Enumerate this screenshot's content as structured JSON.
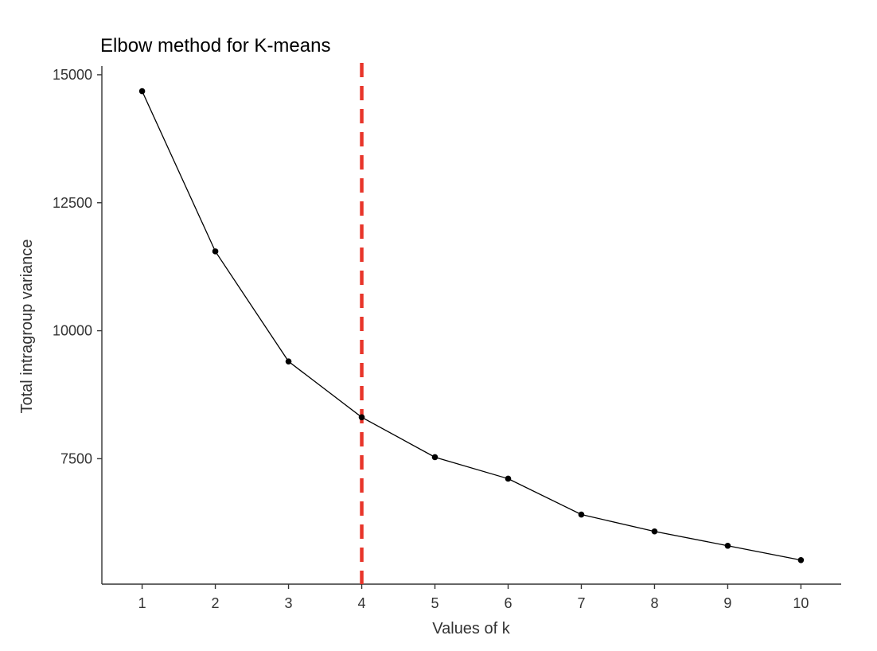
{
  "chart_data": {
    "type": "line",
    "title": "Elbow method for K-means",
    "xlabel": "Values of k",
    "ylabel": "Total intragroup variance",
    "x": [
      1,
      2,
      3,
      4,
      5,
      6,
      7,
      8,
      9,
      10
    ],
    "series": [
      {
        "values": [
          14680,
          11550,
          9400,
          8310,
          7530,
          7110,
          6410,
          6080,
          5800,
          5520
        ]
      }
    ],
    "xlim": [
      0.45,
      10.55
    ],
    "ylim": [
      5050,
      15170
    ],
    "x_ticks": [
      1,
      2,
      3,
      4,
      5,
      6,
      7,
      8,
      9,
      10
    ],
    "x_tick_labels": [
      "1",
      "2",
      "3",
      "4",
      "5",
      "6",
      "7",
      "8",
      "9",
      "10"
    ],
    "y_ticks": [
      7500,
      10000,
      12500,
      15000
    ],
    "y_tick_labels": [
      "7500",
      "10000",
      "12500",
      "15000"
    ],
    "reference_line": {
      "orientation": "vertical",
      "x": 4,
      "style": "dashed",
      "color": "#e8352a"
    },
    "grid": false,
    "legend": "none",
    "colors": {
      "line": "#000000",
      "points": "#000000",
      "axis": "#333333",
      "text": "#333333"
    }
  }
}
